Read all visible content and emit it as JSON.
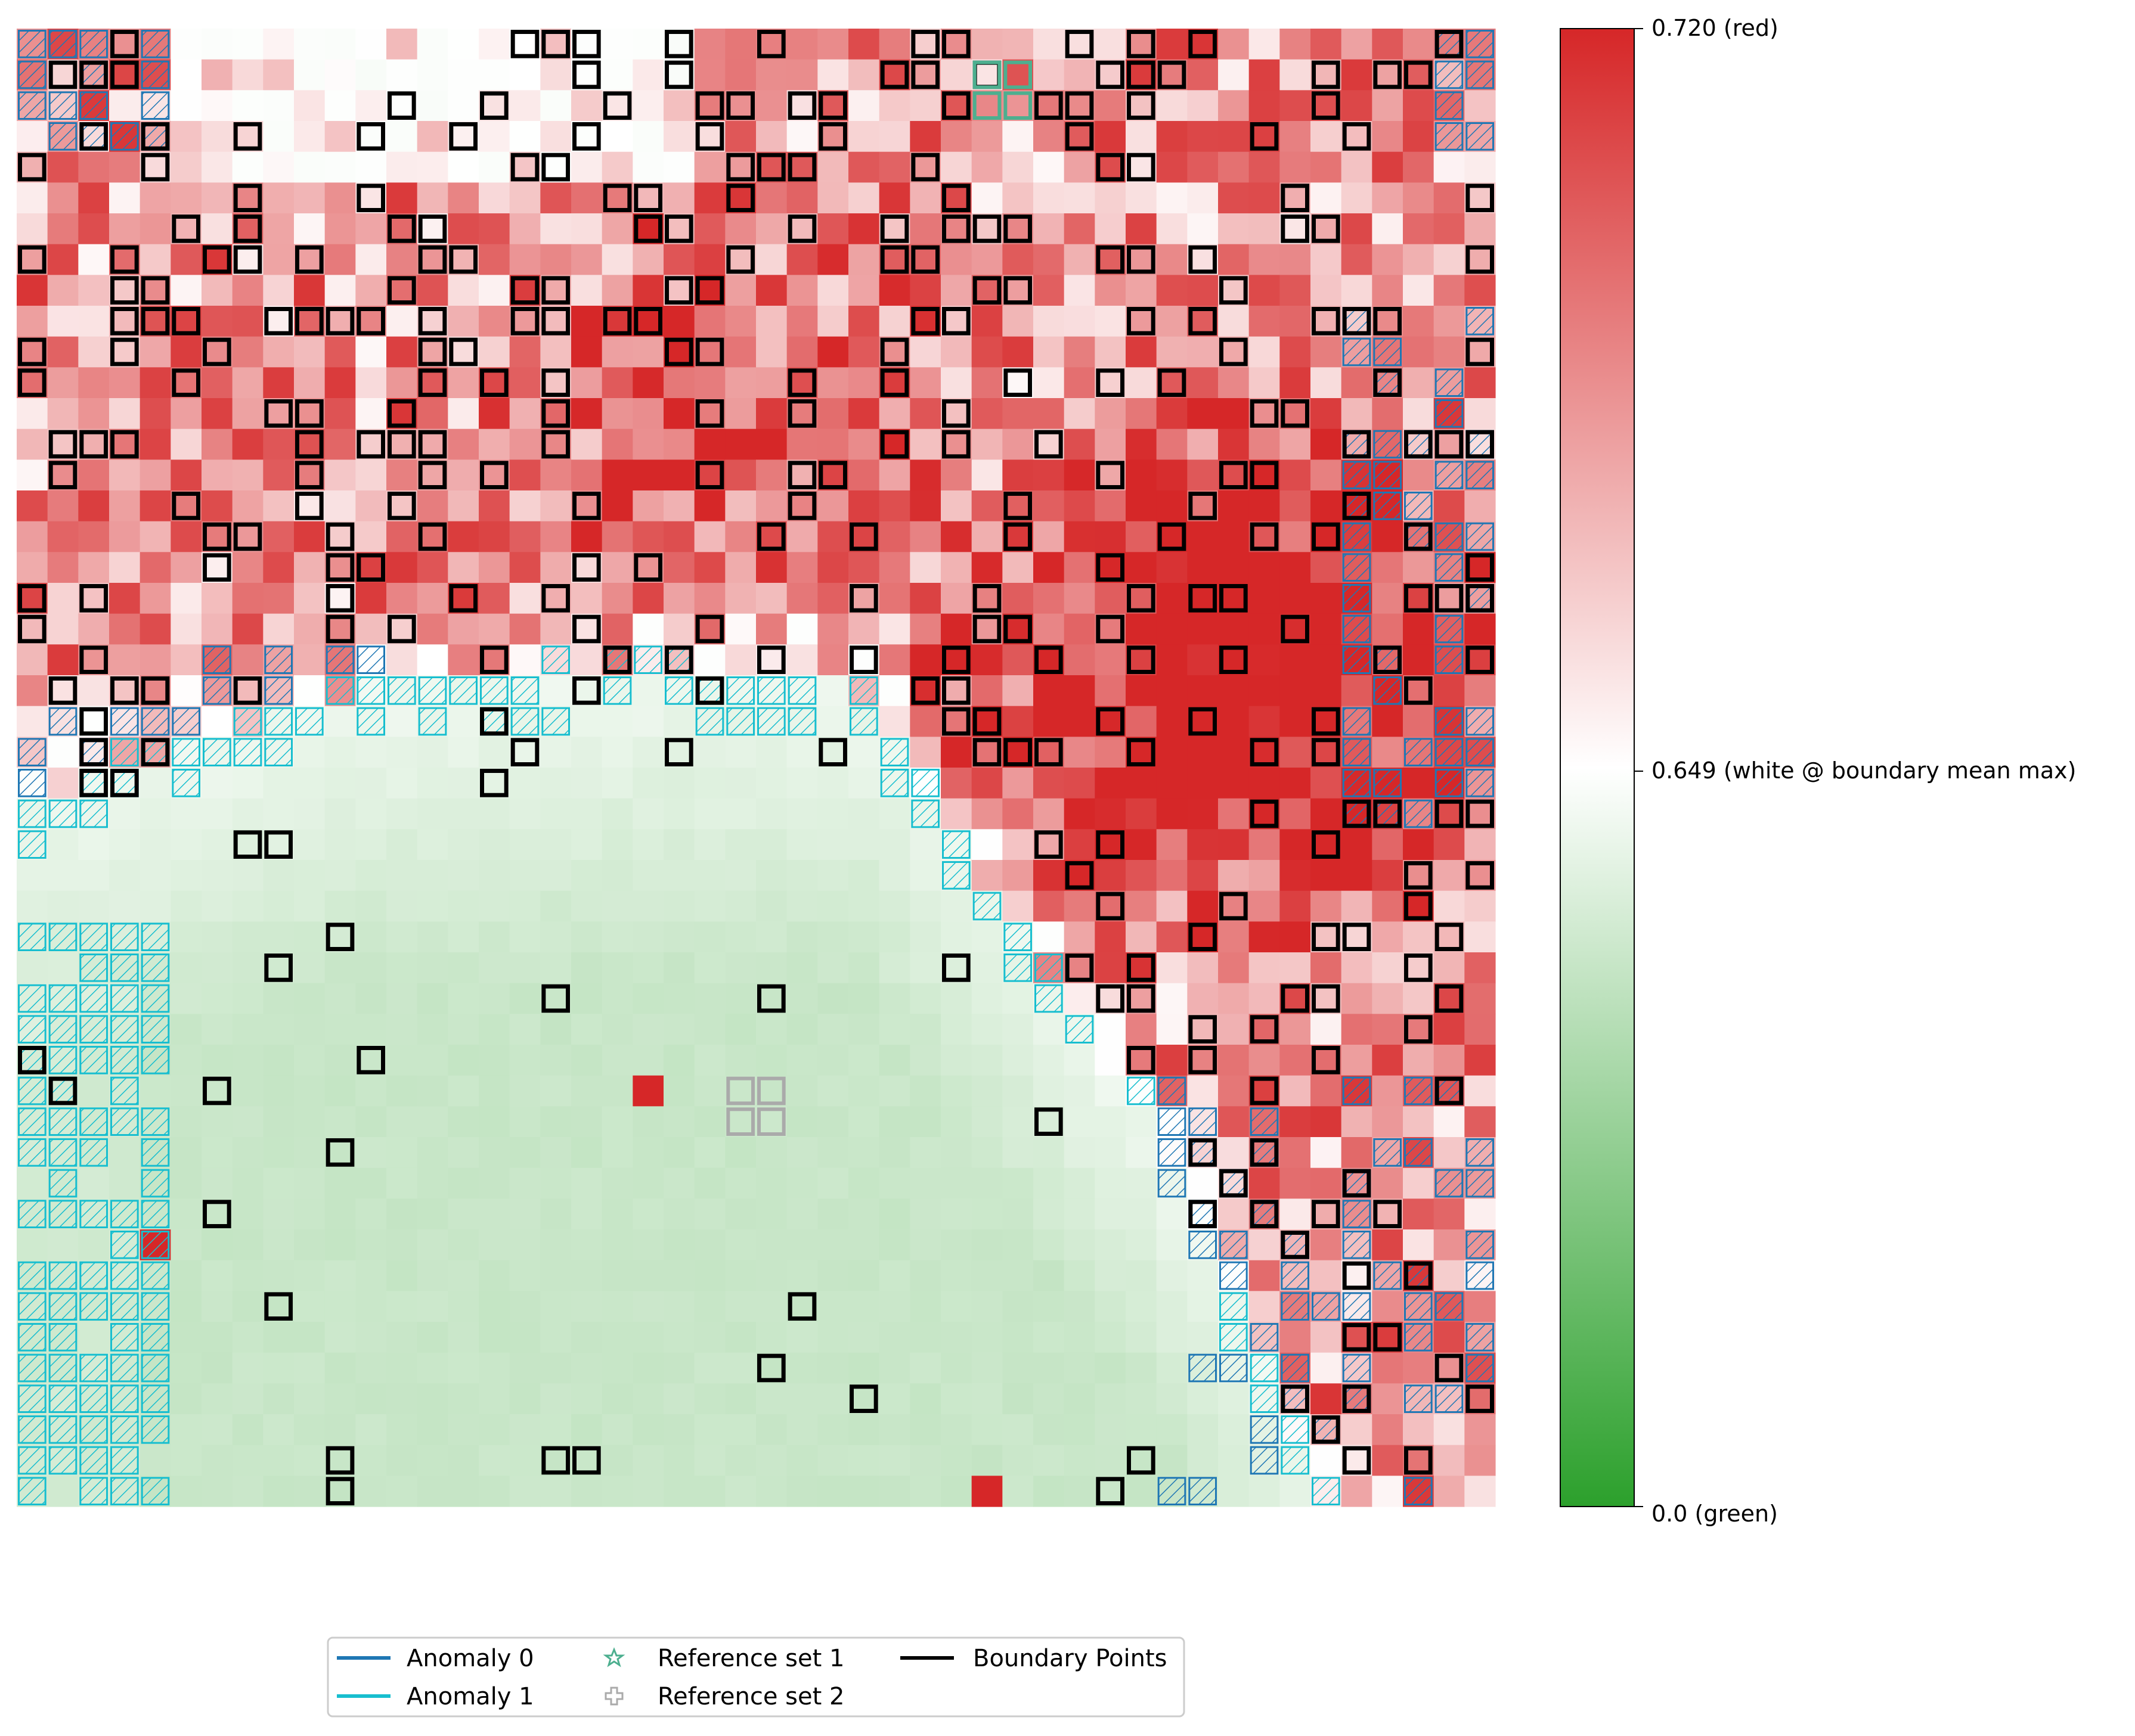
{
  "chart_data": {
    "type": "heatmap",
    "title": "",
    "xlabel": "",
    "ylabel": "",
    "grid_size": [
      48,
      48
    ],
    "colorbar": {
      "ticks": [
        {
          "value": 0.72,
          "label": "0.720 (red)"
        },
        {
          "value": 0.649,
          "label": "0.649 (white @ boundary mean max)"
        },
        {
          "value": 0.0,
          "label": "0.0 (green)"
        }
      ],
      "min": 0.0,
      "white_value": 0.649,
      "max": 0.72,
      "colors": {
        "low": "#2ca02c",
        "mid": "#ffffff",
        "high": "#d62728"
      }
    },
    "legend": {
      "placement": "bottom-center",
      "entries": [
        {
          "label": "Anomaly 0",
          "marker": "line",
          "color": "#1f77b4"
        },
        {
          "label": "Anomaly 1",
          "marker": "line",
          "color": "#17becf"
        },
        {
          "label": "Reference set 1",
          "marker": "star",
          "color": "#4daf8f"
        },
        {
          "label": "Reference set 2",
          "marker": "plus",
          "color": "#aaaaaa"
        },
        {
          "label": "Boundary Points",
          "marker": "line",
          "color": "#000000"
        }
      ]
    },
    "reference_sets": [
      {
        "name": "Reference set 1",
        "color": "#4daf8f",
        "cells": [
          [
            31,
            1
          ],
          [
            32,
            1
          ],
          [
            31,
            2
          ],
          [
            32,
            2
          ]
        ]
      },
      {
        "name": "Reference set 2",
        "color": "#aaaaaa",
        "cells": [
          [
            23,
            34
          ],
          [
            24,
            34
          ],
          [
            23,
            35
          ],
          [
            24,
            35
          ]
        ]
      }
    ],
    "outlier_cells": [
      [
        20,
        34
      ],
      [
        4,
        39
      ],
      [
        31,
        47
      ]
    ]
  }
}
